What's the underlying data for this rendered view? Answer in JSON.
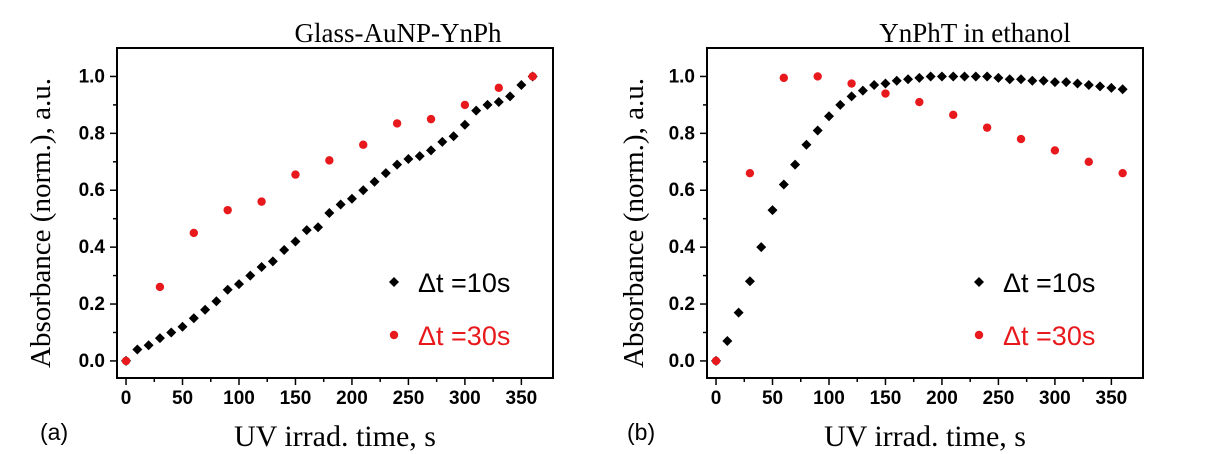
{
  "chart_data": [
    {
      "type": "scatter",
      "panel_label": "(a)",
      "title": "Glass-AuNP-YnPh",
      "xlabel": "UV irrad. time, s",
      "ylabel": "Absorbance (norm.), a.u.",
      "xlim": [
        -8,
        378
      ],
      "ylim": [
        -0.06,
        1.1
      ],
      "xticks": [
        "0",
        "50",
        "100",
        "150",
        "200",
        "250",
        "300",
        "350"
      ],
      "yticks": [
        "0.0",
        "0.2",
        "0.4",
        "0.6",
        "0.8",
        "1.0"
      ],
      "grid": false,
      "legend_position": "bottom-right",
      "series": [
        {
          "name": "Δt =10s",
          "marker": "diamond",
          "color": "#000000",
          "x": [
            0,
            10,
            20,
            30,
            40,
            50,
            60,
            70,
            80,
            90,
            100,
            110,
            120,
            130,
            140,
            150,
            160,
            170,
            180,
            190,
            200,
            210,
            220,
            230,
            240,
            250,
            260,
            270,
            280,
            290,
            300,
            310,
            320,
            330,
            340,
            350,
            360
          ],
          "y": [
            0.0,
            0.04,
            0.055,
            0.08,
            0.1,
            0.12,
            0.15,
            0.18,
            0.21,
            0.25,
            0.27,
            0.3,
            0.33,
            0.35,
            0.39,
            0.42,
            0.46,
            0.47,
            0.52,
            0.55,
            0.57,
            0.6,
            0.63,
            0.66,
            0.69,
            0.71,
            0.72,
            0.74,
            0.77,
            0.79,
            0.83,
            0.88,
            0.9,
            0.91,
            0.93,
            0.97,
            1.0
          ]
        },
        {
          "name": "Δt =30s",
          "marker": "circle",
          "color": "#e8191c",
          "x": [
            0,
            30,
            60,
            90,
            120,
            150,
            180,
            210,
            240,
            270,
            300,
            330,
            360
          ],
          "y": [
            0.0,
            0.26,
            0.45,
            0.53,
            0.56,
            0.655,
            0.705,
            0.76,
            0.835,
            0.85,
            0.9,
            0.96,
            1.0
          ]
        }
      ]
    },
    {
      "type": "scatter",
      "panel_label": "(b)",
      "title": "YnPhT in ethanol",
      "xlabel": "UV irrad. time, s",
      "ylabel": "Absorbance (norm.), a.u.",
      "xlim": [
        -8,
        378
      ],
      "ylim": [
        -0.06,
        1.1
      ],
      "xticks": [
        "0",
        "50",
        "100",
        "150",
        "200",
        "250",
        "300",
        "350"
      ],
      "yticks": [
        "0.0",
        "0.2",
        "0.4",
        "0.6",
        "0.8",
        "1.0"
      ],
      "grid": false,
      "legend_position": "bottom-right",
      "series": [
        {
          "name": "Δt =10s",
          "marker": "diamond",
          "color": "#000000",
          "x": [
            0,
            10,
            20,
            30,
            40,
            50,
            60,
            70,
            80,
            90,
            100,
            110,
            120,
            130,
            140,
            150,
            160,
            170,
            180,
            190,
            200,
            210,
            220,
            230,
            240,
            250,
            260,
            270,
            280,
            290,
            300,
            310,
            320,
            330,
            340,
            350,
            360
          ],
          "y": [
            0.0,
            0.07,
            0.17,
            0.28,
            0.4,
            0.53,
            0.62,
            0.69,
            0.76,
            0.81,
            0.86,
            0.9,
            0.93,
            0.95,
            0.97,
            0.975,
            0.985,
            0.99,
            0.995,
            1.0,
            1.0,
            1.0,
            1.0,
            1.0,
            1.0,
            0.995,
            0.99,
            0.99,
            0.985,
            0.985,
            0.98,
            0.98,
            0.975,
            0.97,
            0.965,
            0.96,
            0.955
          ]
        },
        {
          "name": "Δt =30s",
          "marker": "circle",
          "color": "#e8191c",
          "x": [
            0,
            30,
            60,
            90,
            120,
            150,
            180,
            210,
            240,
            270,
            300,
            330,
            360
          ],
          "y": [
            0.0,
            0.66,
            0.995,
            1.0,
            0.975,
            0.94,
            0.91,
            0.865,
            0.82,
            0.78,
            0.74,
            0.7,
            0.66
          ]
        }
      ]
    }
  ]
}
